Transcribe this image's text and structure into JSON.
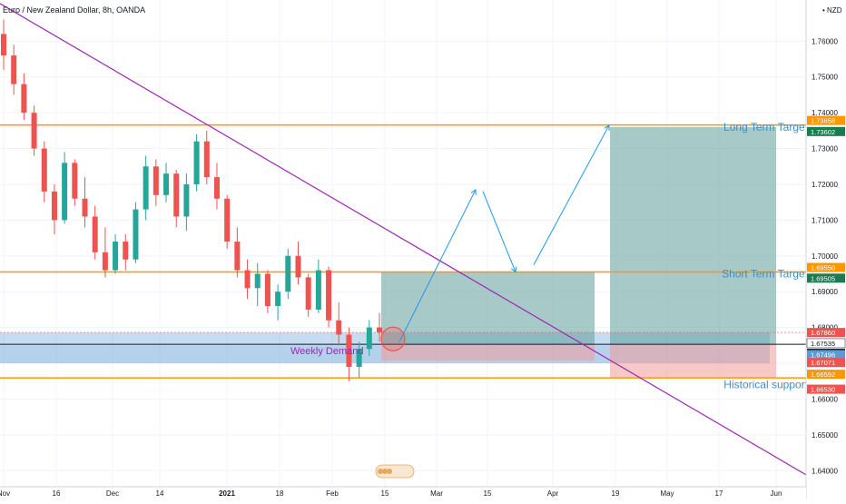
{
  "header": {
    "symbol_line": "Euro / New Zealand Dollar, 8h, OANDA"
  },
  "chart_data": {
    "type": "candlestick",
    "currency": "NZD",
    "ylim": [
      1.6355,
      1.7715
    ],
    "y_ticks": [
      1.76,
      1.75,
      1.74,
      1.73,
      1.72,
      1.71,
      1.7,
      1.69,
      1.68,
      1.67,
      1.66,
      1.65,
      1.64
    ],
    "y_tick_labels": [
      "1.76000",
      "1.75000",
      "1.74000",
      "1.73000",
      "1.72000",
      "1.71000",
      "1.70000",
      "1.69000",
      "1.68000",
      "1.67000",
      "1.66000",
      "1.65000",
      "1.64000"
    ],
    "x_tick_labels": [
      "Nov",
      "16",
      "Dec",
      "14",
      "2021",
      "18",
      "Feb",
      "15",
      "Mar",
      "15",
      "Apr",
      "19",
      "May",
      "17",
      "Jun"
    ],
    "annotations": {
      "long_term": "Long Term Target",
      "short_term": "Short Term Target",
      "historical": "Historical support",
      "weekly_demand": "Weekly Demand"
    },
    "levels": [
      {
        "value": 1.73658,
        "label": "1.73658"
      },
      {
        "value": 1.6955,
        "label": "1.69550"
      },
      {
        "value": 1.66592,
        "label": "1.66592"
      }
    ],
    "price_labels": [
      {
        "value": 1.73658,
        "label": "1.73658",
        "color": "#ff9800"
      },
      {
        "value": 1.73602,
        "label": "1.73602",
        "color": "#1b7a52"
      },
      {
        "value": 1.6955,
        "label": "1.69550",
        "color": "#ff9800"
      },
      {
        "value": 1.69505,
        "label": "1.69505",
        "color": "#1b7a52"
      },
      {
        "value": 1.6786,
        "label": "1.67860",
        "color": "#ef5350"
      },
      {
        "value": 1.67535,
        "label": "1.67535",
        "color": "#ffffff"
      },
      {
        "value": 1.67532,
        "label": "1.67532",
        "color": "#131722"
      },
      {
        "value": 1.67496,
        "label": "1.67496",
        "color": "#5b9bd5"
      },
      {
        "value": 1.67071,
        "label": "1.67071",
        "color": "#ef5350"
      },
      {
        "value": 1.66592,
        "label": "1.66592",
        "color": "#ff9800"
      },
      {
        "value": 1.6653,
        "label": "1.66530",
        "color": "#ef5350"
      }
    ],
    "candles": [
      {
        "t": 0,
        "o": 1.762,
        "h": 1.766,
        "l": 1.752,
        "c": 1.756
      },
      {
        "t": 1,
        "o": 1.756,
        "h": 1.759,
        "l": 1.745,
        "c": 1.748
      },
      {
        "t": 2,
        "o": 1.748,
        "h": 1.751,
        "l": 1.738,
        "c": 1.74
      },
      {
        "t": 3,
        "o": 1.74,
        "h": 1.742,
        "l": 1.728,
        "c": 1.73
      },
      {
        "t": 4,
        "o": 1.73,
        "h": 1.732,
        "l": 1.715,
        "c": 1.718
      },
      {
        "t": 5,
        "o": 1.718,
        "h": 1.72,
        "l": 1.706,
        "c": 1.71
      },
      {
        "t": 6,
        "o": 1.71,
        "h": 1.729,
        "l": 1.709,
        "c": 1.726
      },
      {
        "t": 7,
        "o": 1.726,
        "h": 1.727,
        "l": 1.714,
        "c": 1.716
      },
      {
        "t": 8,
        "o": 1.716,
        "h": 1.722,
        "l": 1.708,
        "c": 1.711
      },
      {
        "t": 9,
        "o": 1.711,
        "h": 1.714,
        "l": 1.699,
        "c": 1.701
      },
      {
        "t": 10,
        "o": 1.701,
        "h": 1.708,
        "l": 1.694,
        "c": 1.696
      },
      {
        "t": 11,
        "o": 1.696,
        "h": 1.706,
        "l": 1.695,
        "c": 1.704
      },
      {
        "t": 12,
        "o": 1.704,
        "h": 1.706,
        "l": 1.696,
        "c": 1.699
      },
      {
        "t": 13,
        "o": 1.699,
        "h": 1.715,
        "l": 1.698,
        "c": 1.713
      },
      {
        "t": 14,
        "o": 1.713,
        "h": 1.728,
        "l": 1.71,
        "c": 1.725
      },
      {
        "t": 15,
        "o": 1.725,
        "h": 1.727,
        "l": 1.714,
        "c": 1.717
      },
      {
        "t": 16,
        "o": 1.717,
        "h": 1.726,
        "l": 1.715,
        "c": 1.723
      },
      {
        "t": 17,
        "o": 1.723,
        "h": 1.724,
        "l": 1.708,
        "c": 1.711
      },
      {
        "t": 18,
        "o": 1.711,
        "h": 1.723,
        "l": 1.707,
        "c": 1.72
      },
      {
        "t": 19,
        "o": 1.72,
        "h": 1.734,
        "l": 1.718,
        "c": 1.732
      },
      {
        "t": 20,
        "o": 1.732,
        "h": 1.735,
        "l": 1.72,
        "c": 1.722
      },
      {
        "t": 21,
        "o": 1.722,
        "h": 1.726,
        "l": 1.713,
        "c": 1.716
      },
      {
        "t": 22,
        "o": 1.716,
        "h": 1.717,
        "l": 1.702,
        "c": 1.704
      },
      {
        "t": 23,
        "o": 1.704,
        "h": 1.708,
        "l": 1.694,
        "c": 1.696
      },
      {
        "t": 24,
        "o": 1.696,
        "h": 1.699,
        "l": 1.688,
        "c": 1.691
      },
      {
        "t": 25,
        "o": 1.691,
        "h": 1.698,
        "l": 1.686,
        "c": 1.695
      },
      {
        "t": 26,
        "o": 1.695,
        "h": 1.696,
        "l": 1.684,
        "c": 1.686
      },
      {
        "t": 27,
        "o": 1.686,
        "h": 1.692,
        "l": 1.682,
        "c": 1.69
      },
      {
        "t": 28,
        "o": 1.69,
        "h": 1.702,
        "l": 1.688,
        "c": 1.7
      },
      {
        "t": 29,
        "o": 1.7,
        "h": 1.704,
        "l": 1.692,
        "c": 1.694
      },
      {
        "t": 30,
        "o": 1.694,
        "h": 1.695,
        "l": 1.683,
        "c": 1.685
      },
      {
        "t": 31,
        "o": 1.685,
        "h": 1.699,
        "l": 1.684,
        "c": 1.696
      },
      {
        "t": 32,
        "o": 1.696,
        "h": 1.697,
        "l": 1.68,
        "c": 1.682
      },
      {
        "t": 33,
        "o": 1.682,
        "h": 1.687,
        "l": 1.675,
        "c": 1.678
      },
      {
        "t": 34,
        "o": 1.678,
        "h": 1.68,
        "l": 1.665,
        "c": 1.669
      },
      {
        "t": 35,
        "o": 1.669,
        "h": 1.676,
        "l": 1.666,
        "c": 1.674
      },
      {
        "t": 36,
        "o": 1.674,
        "h": 1.682,
        "l": 1.672,
        "c": 1.68
      },
      {
        "t": 37,
        "o": 1.68,
        "h": 1.684,
        "l": 1.676,
        "c": 1.6786
      }
    ]
  }
}
